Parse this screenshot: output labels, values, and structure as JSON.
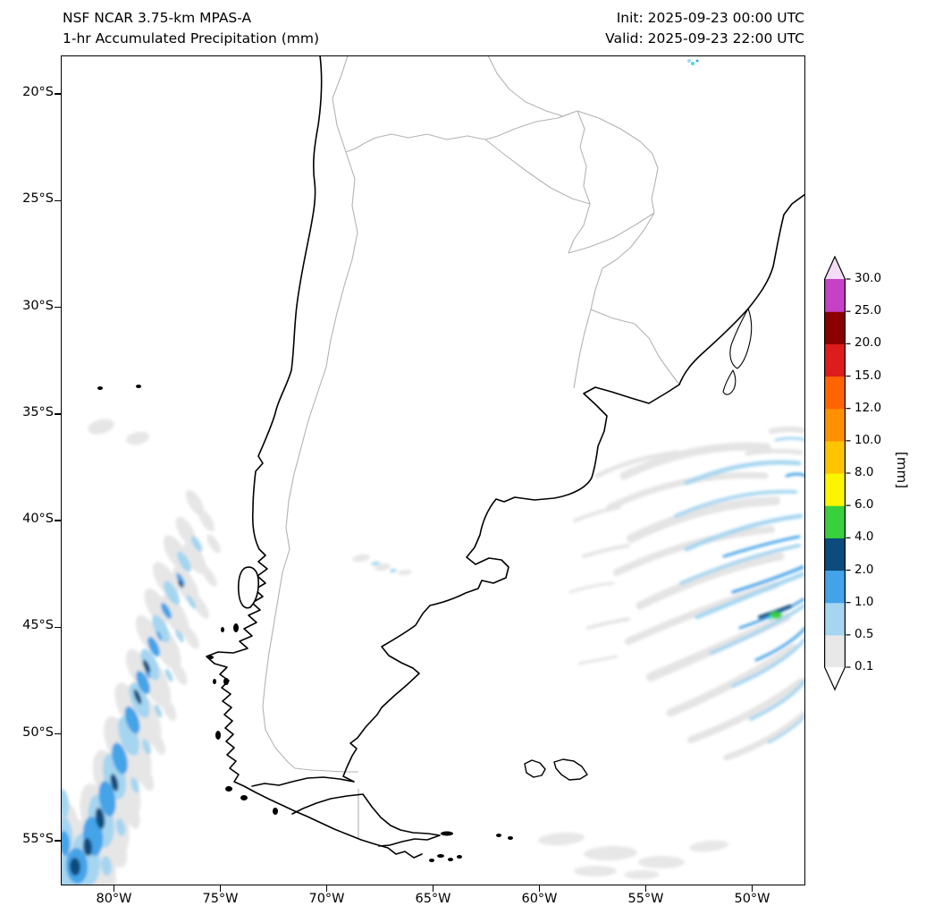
{
  "header": {
    "model": "NSF NCAR 3.75-km MPAS-A",
    "product": "1-hr Accumulated Precipitation (mm)",
    "init": "Init: 2025-09-23 00:00 UTC",
    "valid": "Valid: 2025-09-23 22:00 UTC"
  },
  "axes": {
    "lat_ticks": [
      "20°S",
      "25°S",
      "30°S",
      "35°S",
      "40°S",
      "45°S",
      "50°S",
      "55°S"
    ],
    "lon_ticks": [
      "80°W",
      "75°W",
      "70°W",
      "65°W",
      "60°W",
      "55°W",
      "50°W"
    ]
  },
  "colorbar_unit": "[mm]",
  "chart_data": {
    "type": "heatmap",
    "title": "1-hr Accumulated Precipitation (mm)",
    "model": "NSF NCAR 3.75-km MPAS-A",
    "init_time": "2025-09-23 00:00 UTC",
    "valid_time": "2025-09-23 22:00 UTC",
    "map_extent": {
      "lon_west": -82.5,
      "lon_east": -47.5,
      "lat_north": -18.2,
      "lat_south": -57.1
    },
    "x_tick_labels": [
      "80°W",
      "75°W",
      "70°W",
      "65°W",
      "60°W",
      "55°W",
      "50°W"
    ],
    "y_tick_labels": [
      "20°S",
      "25°S",
      "30°S",
      "35°S",
      "40°S",
      "45°S",
      "50°S",
      "55°S"
    ],
    "grid": false,
    "colorbar": {
      "unit": "[mm]",
      "position": "right",
      "levels": [
        0.1,
        0.5,
        1.0,
        2.0,
        4.0,
        6.0,
        8.0,
        10.0,
        12.0,
        15.0,
        20.0,
        25.0,
        30.0
      ],
      "tick_labels": [
        "0.1",
        "0.5",
        "1.0",
        "2.0",
        "4.0",
        "6.0",
        "8.0",
        "10.0",
        "12.0",
        "15.0",
        "20.0",
        "25.0",
        "30.0"
      ],
      "colors": [
        "#e8e8e8",
        "#a5d5f0",
        "#44a3e8",
        "#0b4c7d",
        "#38d03c",
        "#fbf500",
        "#ffc400",
        "#ff9000",
        "#ff6400",
        "#dd1c1c",
        "#8b0000",
        "#c541c5"
      ],
      "under_color": "#ffffff",
      "over_color": "#f3dcf5"
    },
    "features": [
      "Elongated precipitation band (0.1–6 mm, cores 2–4 mm) offshore and along the southern Chile coast from about 38°S to 57°S",
      "Cyclonic spiral rain bands (0.1–2 mm, small 4–8 mm core near 44.5°S 48.5°W) over the South Atlantic east of 57°W between 37°S and 53°S",
      "Weak traces (0.1–0.5 mm) along the southern map edge near 56°S between 62°W and 52°W",
      "Isolated light showers near 35.5°S 79°W and a tiny 0.5–2 mm speck near 18.5°S 52.5°W"
    ]
  }
}
